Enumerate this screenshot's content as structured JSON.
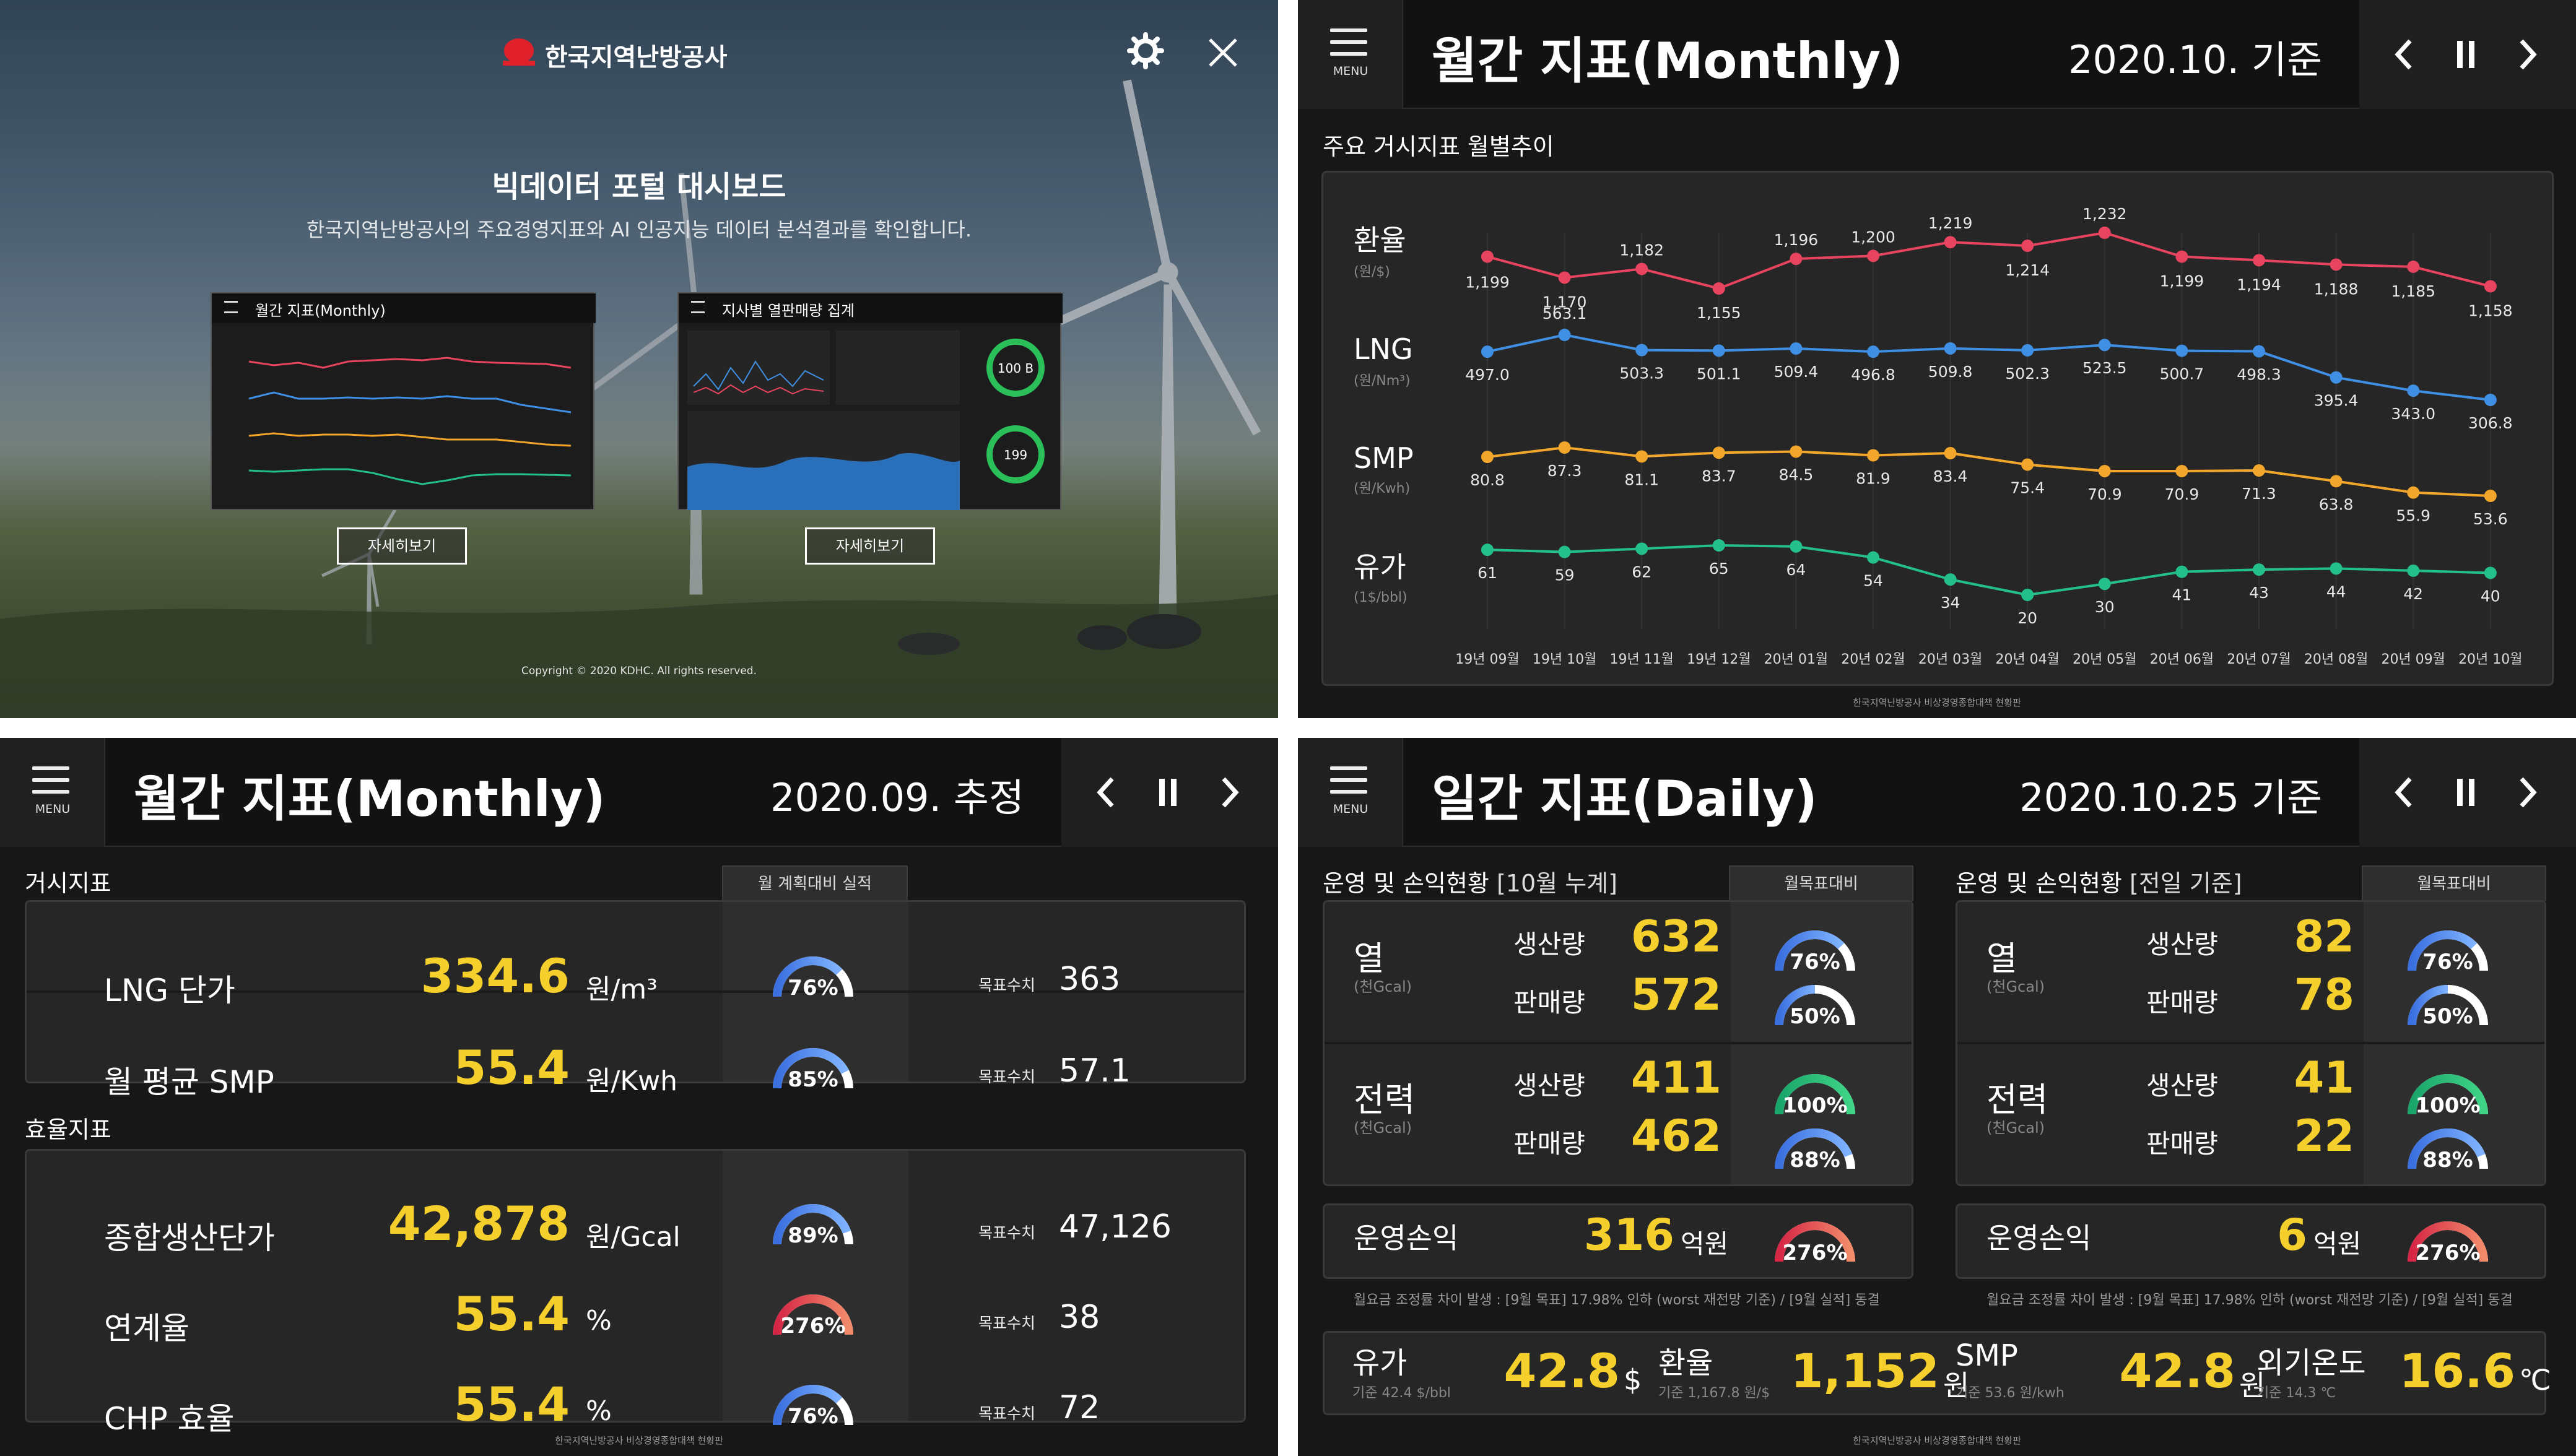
{
  "portal": {
    "logo_text": "한국지역난방공사",
    "title": "빅데이터 포털 대시보드",
    "subtitle": "한국지역난방공사의 주요경영지표와 AI 인공지능 데이터 분석결과를 확인합니다.",
    "card1_title": "월간 지표(Monthly)",
    "card2_title": "지사별 열판매량 집계",
    "detail_label": "자세히보기",
    "copyright": "Copyright © 2020 KDHC. All rights reserved.",
    "gauge_label1": "100 B",
    "gauge_label2": "199"
  },
  "monthly_chart": {
    "menu_label": "MENU",
    "title": "월간 지표(Monthly)",
    "date": "2020.10. 기준",
    "section_title": "주요 거시지표 월별추이",
    "footer": "한국지역난방공사 비상경영종합대책 현황판"
  },
  "chart_data": {
    "type": "line",
    "categories": [
      "19년 09월",
      "19년 10월",
      "19년 11월",
      "19년 12월",
      "20년 01월",
      "20년 02월",
      "20년 03월",
      "20년 04월",
      "20년 05월",
      "20년 06월",
      "20년 07월",
      "20년 08월",
      "20년 09월",
      "20년 10월"
    ],
    "series": [
      {
        "name": "환율",
        "unit": "(원/$)",
        "color": "#e8435f",
        "labels": [
          "1,199",
          "1,170",
          "1,182",
          "1,155",
          "1,196",
          "1,200",
          "1,219",
          "1,214",
          "1,232",
          "1,199",
          "1,194",
          "1,188",
          "1,185",
          "1,158"
        ],
        "values": [
          1199,
          1170,
          1182,
          1155,
          1196,
          1200,
          1219,
          1214,
          1232,
          1199,
          1194,
          1188,
          1185,
          1158
        ]
      },
      {
        "name": "LNG",
        "unit": "(원/Nm³)",
        "color": "#3f8fe4",
        "labels": [
          "497.0",
          "563.1",
          "503.3",
          "501.1",
          "509.4",
          "496.8",
          "509.8",
          "502.3",
          "523.5",
          "500.7",
          "498.3",
          "395.4",
          "343.0",
          "306.8"
        ],
        "values": [
          497.0,
          563.1,
          503.3,
          501.1,
          509.4,
          496.8,
          509.8,
          502.3,
          523.5,
          500.7,
          498.3,
          395.4,
          343.0,
          306.8
        ]
      },
      {
        "name": "SMP",
        "unit": "(원/Kwh)",
        "color": "#f2a72c",
        "labels": [
          "80.8",
          "87.3",
          "81.1",
          "83.7",
          "84.5",
          "81.9",
          "83.4",
          "75.4",
          "70.9",
          "70.9",
          "71.3",
          "63.8",
          "55.9",
          "53.6"
        ],
        "values": [
          80.8,
          87.3,
          81.1,
          83.7,
          84.5,
          81.9,
          83.4,
          75.4,
          70.9,
          70.9,
          71.3,
          63.8,
          55.9,
          53.6
        ]
      },
      {
        "name": "유가",
        "unit": "(1$/bbl)",
        "color": "#24c08c",
        "labels": [
          "61",
          "59",
          "62",
          "65",
          "64",
          "54",
          "34",
          "20",
          "30",
          "41",
          "43",
          "44",
          "42",
          "40"
        ],
        "values": [
          61,
          59,
          62,
          65,
          64,
          54,
          34,
          20,
          30,
          41,
          43,
          44,
          42,
          40
        ]
      }
    ]
  },
  "monthly_est": {
    "menu_label": "MENU",
    "title": "월간 지표(Monthly)",
    "date": "2020.09. 추정",
    "macro_section": "거시지표",
    "eff_section": "효율지표",
    "tab_label": "월 계획대비 실적",
    "target_label": "목표수치",
    "footer": "한국지역난방공사 비상경영종합대책 현황판",
    "rows": [
      {
        "label": "LNG 단가",
        "value": "334.6",
        "unit": "원/m³",
        "pct": "76%",
        "pct_value": 76,
        "target": "363"
      },
      {
        "label": "월 평균 SMP",
        "value": "55.4",
        "unit": "원/Kwh",
        "pct": "85%",
        "pct_value": 85,
        "target": "57.1"
      },
      {
        "label": "종합생산단가",
        "value": "42,878",
        "unit": "원/Gcal",
        "pct": "89%",
        "pct_value": 89,
        "target": "47,126"
      },
      {
        "label": "연계율",
        "value": "55.4",
        "unit": "%",
        "pct": "276%",
        "pct_value": 276,
        "target": "38"
      },
      {
        "label": "CHP 효율",
        "value": "55.4",
        "unit": "%",
        "pct": "76%",
        "pct_value": 76,
        "target": "72"
      }
    ]
  },
  "daily": {
    "menu_label": "MENU",
    "title": "일간 지표(Daily)",
    "date": "2020.10.25 기준",
    "left_section": "운영 및 손익현황",
    "left_section_sub": "[10월 누계]",
    "right_section": "운영 및 손익현황",
    "right_section_sub": "[전일 기준]",
    "tab_label": "월목표대비",
    "heat_label": "열",
    "power_label": "전력",
    "unit_label": "(천Gcal)",
    "produce_label": "생산량",
    "sell_label": "판매량",
    "left": {
      "heat_prod": "632",
      "heat_sell": "572",
      "power_prod": "411",
      "power_sell": "462",
      "g1": "76%",
      "g2": "50%",
      "g3": "100%",
      "g4": "88%",
      "g1v": 76,
      "g2v": 50,
      "g3v": 100,
      "g4v": 88
    },
    "right": {
      "heat_prod": "82",
      "heat_sell": "78",
      "power_prod": "41",
      "power_sell": "22",
      "g1": "76%",
      "g2": "50%",
      "g3": "100%",
      "g4": "88%",
      "g1v": 76,
      "g2v": 50,
      "g3v": 100,
      "g4v": 88
    },
    "op_label": "운영손익",
    "op_left_value": "316",
    "op_right_value": "6",
    "op_unit": "억원",
    "op_pct": "276%",
    "op_pct_value": 276,
    "op_note": "월요금 조정률 차이 발생 : [9월 목표] 17.98% 인하 (worst 재전망 기준) / [9월 실적] 동결",
    "bottom": [
      {
        "label": "유가",
        "value": "42.8",
        "unit": "$",
        "sub": "기준 42.4 $/bbl"
      },
      {
        "label": "환율",
        "value": "1,152",
        "unit": "원",
        "sub": "기준 1,167.8 원/$"
      },
      {
        "label": "SMP",
        "value": "42.8",
        "unit": "원",
        "sub": "기준 53.6 원/kwh"
      },
      {
        "label": "외기온도",
        "value": "16.6",
        "unit": "℃",
        "sub": "기준 14.3 ℃"
      }
    ],
    "footer": "한국지역난방공사 비상경영종합대책 현황판"
  }
}
